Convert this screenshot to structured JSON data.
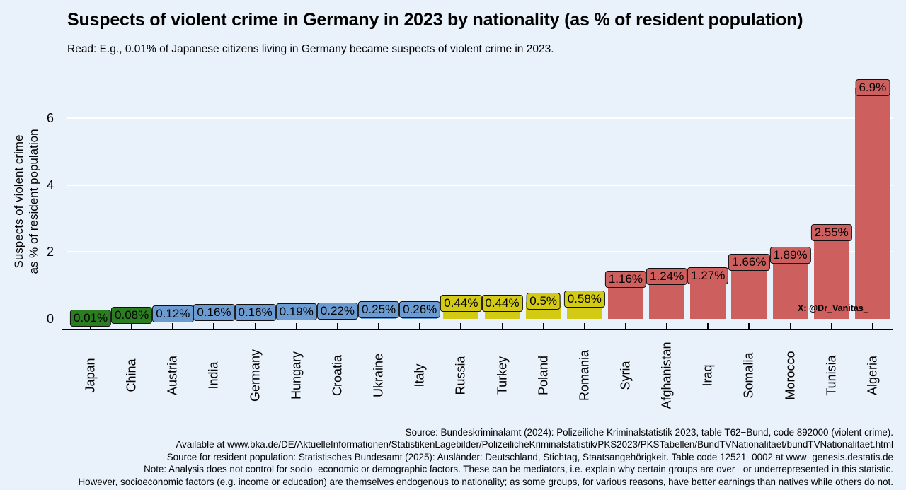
{
  "title": "Suspects of violent crime in Germany in 2023 by nationality (as % of resident population)",
  "subtitle": "Read: E.g., 0.01% of Japanese citizens living in Germany became suspects of violent crime in 2023.",
  "watermark": "X: @Dr_Vanitas_",
  "y_axis": {
    "title_line1": "Suspects of violent crime",
    "title_line2": "as % of resident population",
    "ticks": [
      "0",
      "2",
      "4",
      "6"
    ]
  },
  "chart_data": {
    "type": "bar",
    "title": "Suspects of violent crime in Germany in 2023 by nationality (as % of resident population)",
    "xlabel": "",
    "ylabel": "Suspects of violent crime as % of resident population",
    "ylim": [
      0,
      7.1
    ],
    "yticks": [
      0,
      2,
      4,
      6
    ],
    "grid": "major horizontal white gridlines at 2, 4, 6",
    "legend": "none",
    "background_color": "#e9f2fb",
    "categories": [
      "Japan",
      "China",
      "Austria",
      "India",
      "Germany",
      "Hungary",
      "Croatia",
      "Ukraine",
      "Italy",
      "Russia",
      "Turkey",
      "Poland",
      "Romania",
      "Syria",
      "Afghanistan",
      "Iraq",
      "Somalia",
      "Morocco",
      "Tunisia",
      "Algeria"
    ],
    "values": [
      0.01,
      0.08,
      0.12,
      0.16,
      0.16,
      0.19,
      0.22,
      0.25,
      0.26,
      0.44,
      0.44,
      0.5,
      0.58,
      1.16,
      1.24,
      1.27,
      1.66,
      1.89,
      2.55,
      6.9
    ],
    "bar_labels": [
      "0.01%",
      "0.08%",
      "0.12%",
      "0.16%",
      "0.16%",
      "0.19%",
      "0.22%",
      "0.25%",
      "0.26%",
      "0.44%",
      "0.44%",
      "0.5%",
      "0.58%",
      "1.16%",
      "1.24%",
      "1.27%",
      "1.66%",
      "1.89%",
      "2.55%",
      "6.9%"
    ],
    "bar_groups": [
      "green",
      "green",
      "blue",
      "blue",
      "blue",
      "blue",
      "blue",
      "blue",
      "blue",
      "yellow",
      "yellow",
      "yellow",
      "yellow",
      "red",
      "red",
      "red",
      "red",
      "red",
      "red",
      "red"
    ],
    "group_colors": {
      "green": "#2b7d21",
      "blue": "#6b9bd1",
      "yellow": "#d3ca15",
      "red": "#cd5f5f"
    }
  },
  "footer": {
    "lines": [
      "Source: Bundeskriminalamt (2024): Polizeiliche Kriminalstatistik 2023, table T62−Bund, code 892000 (violent crime).",
      "Available at www.bka.de/DE/AktuelleInformationen/StatistikenLagebilder/PolizeilicheKriminalstatistik/PKS2023/PKSTabellen/BundTVNationalitaet/bundTVNationalitaet.html",
      "Source for resident population: Statistisches Bundesamt (2025): Ausländer: Deutschland, Stichtag, Staatsangehörigkeit. Table code 12521−0002 at www−genesis.destatis.de",
      "Note: Analysis does not control for socio−economic or demographic factors. These can be mediators, i.e. explain why certain groups are over− or underrepresented in this statistic.",
      "However, socioeconomic factors (e.g. income or education) are themselves endogenous to nationality; as some groups, for various reasons, have better earnings than natives while others do not."
    ]
  }
}
